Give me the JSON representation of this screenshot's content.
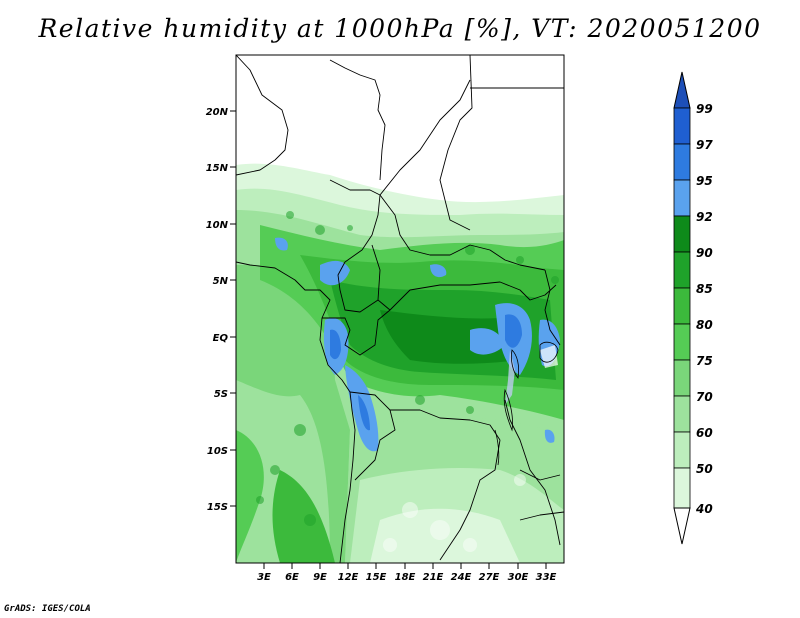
{
  "title": "Relative humidity at 1000hPa [%], VT: 2020051200",
  "credit": "GrADS: IGES/COLA",
  "map": {
    "lat_ticks": [
      "20N",
      "15N",
      "10N",
      "5N",
      "EQ",
      "5S",
      "10S",
      "15S"
    ],
    "lon_ticks": [
      "3E",
      "6E",
      "9E",
      "12E",
      "15E",
      "18E",
      "21E",
      "24E",
      "27E",
      "30E",
      "33E"
    ]
  },
  "colorbar": {
    "levels": [
      "99",
      "97",
      "95",
      "92",
      "90",
      "85",
      "80",
      "75",
      "70",
      "60",
      "50",
      "40"
    ],
    "colors": [
      "#1f5fd1",
      "#2e7be0",
      "#5aa2ee",
      "#0e8a1a",
      "#1fa22a",
      "#3cba3c",
      "#55cc55",
      "#7ad67a",
      "#9de29d",
      "#bdeebd",
      "#dcf7dc",
      "#f2fcf2"
    ],
    "top_arrow_color": "#1d4fb8",
    "bottom_arrow_color": "#ffffff"
  }
}
